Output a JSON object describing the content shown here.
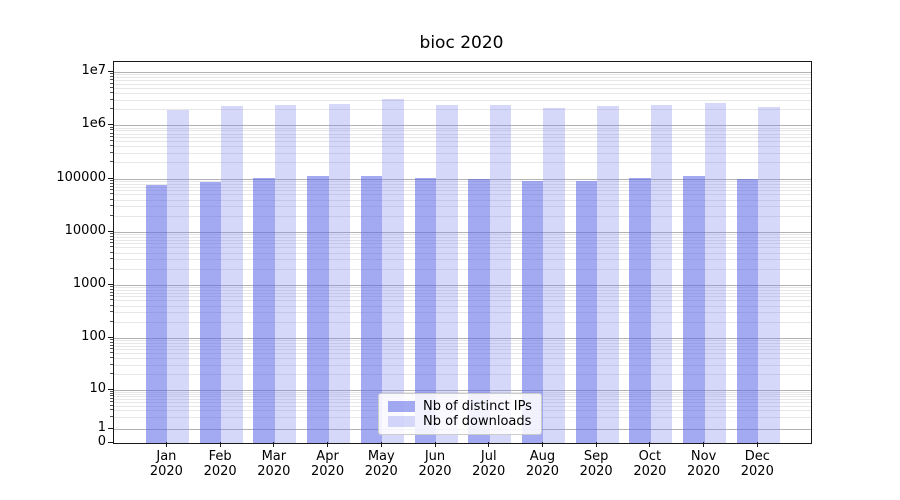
{
  "chart_data": {
    "type": "bar",
    "title": "bioc 2020",
    "categories": [
      "Jan",
      "Feb",
      "Mar",
      "Apr",
      "May",
      "Jun",
      "Jul",
      "Aug",
      "Sep",
      "Oct",
      "Nov",
      "Dec"
    ],
    "x_tick_year": "2020",
    "series": [
      {
        "name": "Nb of distinct IPs",
        "color": "#5A64E6",
        "alpha": 0.55,
        "values": [
          76000,
          86000,
          103000,
          113000,
          110000,
          101000,
          98000,
          89000,
          88000,
          102000,
          112000,
          97000
        ]
      },
      {
        "name": "Nb of downloads",
        "color": "#767DEE",
        "alpha": 0.3,
        "values": [
          1900000,
          2350000,
          2450000,
          2500000,
          3100000,
          2400000,
          2450000,
          2100000,
          2300000,
          2450000,
          2650000,
          2250000
        ]
      }
    ],
    "y_ticks": [
      {
        "label": "0",
        "value": 0
      },
      {
        "label": "1",
        "value": 1
      },
      {
        "label": "10",
        "value": 10
      },
      {
        "label": "100",
        "value": 100
      },
      {
        "label": "1000",
        "value": 1000
      },
      {
        "label": "10000",
        "value": 10000
      },
      {
        "label": "100000",
        "value": 100000
      },
      {
        "label": "1e6",
        "value": 1000000
      },
      {
        "label": "1e7",
        "value": 10000000
      }
    ],
    "yscale": "symlog",
    "ylim": [
      0,
      15000000
    ],
    "grid": true,
    "legend_position": "lower center"
  }
}
